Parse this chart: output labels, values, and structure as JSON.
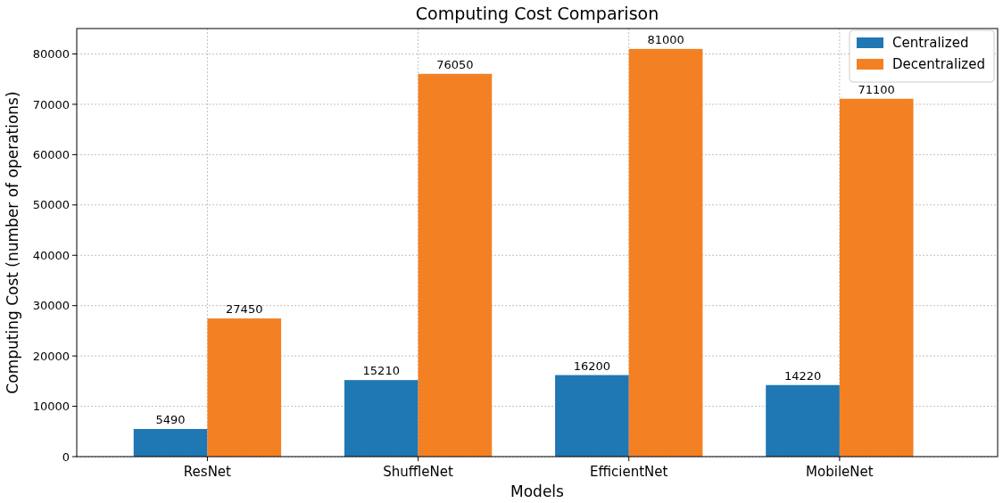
{
  "chart_data": {
    "type": "bar",
    "title": "Computing Cost Comparison",
    "xlabel": "Models",
    "ylabel": "Computing Cost (number of operations)",
    "categories": [
      "ResNet",
      "ShuffleNet",
      "EfficientNet",
      "MobileNet"
    ],
    "series": [
      {
        "name": "Centralized",
        "color": "#1f77b4",
        "values": [
          5490,
          15210,
          16200,
          14220
        ]
      },
      {
        "name": "Decentralized",
        "color": "#f48024",
        "values": [
          27450,
          76050,
          81000,
          71100
        ]
      }
    ],
    "ylim": [
      0,
      85050
    ],
    "yticks": [
      0,
      10000,
      20000,
      30000,
      40000,
      50000,
      60000,
      70000,
      80000
    ],
    "grid": true,
    "legend": "top right",
    "data_labels": true
  }
}
